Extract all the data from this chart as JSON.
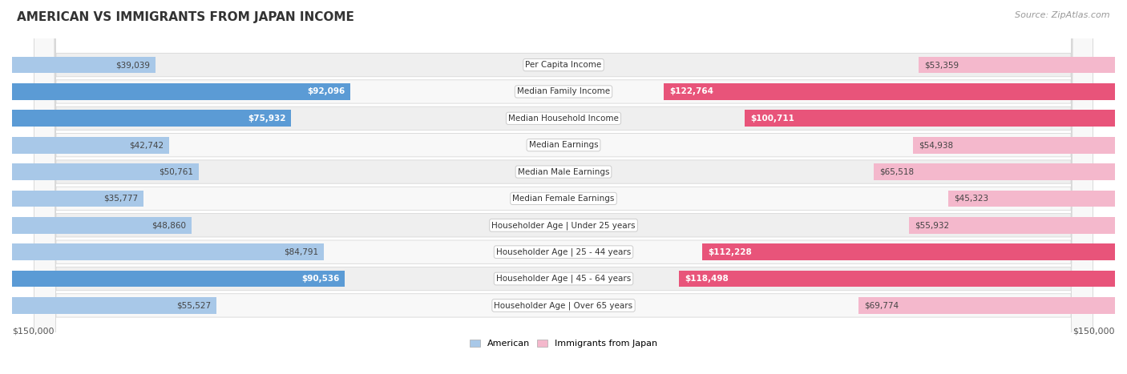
{
  "title": "AMERICAN VS IMMIGRANTS FROM JAPAN INCOME",
  "source": "Source: ZipAtlas.com",
  "categories": [
    "Per Capita Income",
    "Median Family Income",
    "Median Household Income",
    "Median Earnings",
    "Median Male Earnings",
    "Median Female Earnings",
    "Householder Age | Under 25 years",
    "Householder Age | 25 - 44 years",
    "Householder Age | 45 - 64 years",
    "Householder Age | Over 65 years"
  ],
  "american_values": [
    39039,
    92096,
    75932,
    42742,
    50761,
    35777,
    48860,
    84791,
    90536,
    55527
  ],
  "japan_values": [
    53359,
    122764,
    100711,
    54938,
    65518,
    45323,
    55932,
    112228,
    118498,
    69774
  ],
  "american_labels": [
    "$39,039",
    "$92,096",
    "$75,932",
    "$42,742",
    "$50,761",
    "$35,777",
    "$48,860",
    "$84,791",
    "$90,536",
    "$55,527"
  ],
  "japan_labels": [
    "$53,359",
    "$122,764",
    "$100,711",
    "$54,938",
    "$65,518",
    "$45,323",
    "$55,932",
    "$112,228",
    "$118,498",
    "$69,774"
  ],
  "american_color_light": "#a8c8e8",
  "american_color_dark": "#5b9bd5",
  "japan_color_light": "#f4b8cc",
  "japan_color_dark": "#e8547a",
  "max_value": 150000,
  "title_fontsize": 11,
  "source_fontsize": 8,
  "bar_label_fontsize": 7.5,
  "category_fontsize": 7.5,
  "axis_label_fontsize": 8,
  "legend_fontsize": 8,
  "american_dark_indices": [
    1,
    2,
    8
  ],
  "japan_dark_indices": [
    1,
    2,
    7,
    8
  ]
}
